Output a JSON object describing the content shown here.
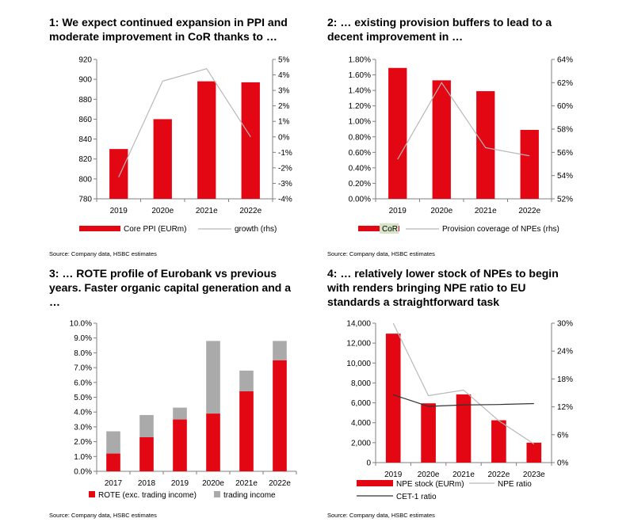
{
  "colors": {
    "bar": "#e30613",
    "gray": "#aaaaaa",
    "line_light": "#b8b8b8",
    "line_dark": "#333333",
    "axis": "#7f7f7f"
  },
  "panels": [
    {
      "title_line1": "1: We expect continued expansion in PPI and",
      "title_line2": "moderate improvement in CoR thanks to …",
      "source": "Source: Company data, HSBC estimates"
    },
    {
      "title_line1": "2: … existing provision buffers to lead to a",
      "title_line2": "decent improvement in …",
      "source": "Source: Company data, HSBC estimates"
    },
    {
      "title_line1": "3: … ROTE profile of Eurobank vs previous",
      "title_line2": "years. Faster organic capital generation and a",
      "title_line3": "…",
      "source": "Source: Company data, HSBC estimates"
    },
    {
      "title_line1": "4: … relatively lower stock of NPEs to begin",
      "title_line2": "with renders bringing NPE ratio to EU",
      "title_line3": "standards a straightforward task",
      "source": "Source: Company data, HSBC estimates"
    }
  ],
  "chart_data": [
    {
      "type": "bar",
      "categories": [
        "2019",
        "2020e",
        "2021e",
        "2022e"
      ],
      "series": [
        {
          "name": "Core PPI (EURm)",
          "kind": "bar",
          "axis": "left",
          "values": [
            830,
            860,
            898,
            897
          ]
        },
        {
          "name": "growth (rhs)",
          "kind": "line",
          "axis": "right",
          "values": [
            -2.6,
            3.6,
            4.4,
            0.0
          ]
        }
      ],
      "ylim": [
        780,
        920
      ],
      "yticks": [
        "780",
        "800",
        "820",
        "840",
        "860",
        "880",
        "900",
        "920"
      ],
      "y2lim": [
        -4,
        5
      ],
      "y2ticks": [
        "-4%",
        "-3%",
        "-2%",
        "-1%",
        "0%",
        "1%",
        "2%",
        "3%",
        "4%",
        "5%"
      ]
    },
    {
      "type": "bar",
      "categories": [
        "2019",
        "2020e",
        "2021e",
        "2022e"
      ],
      "series": [
        {
          "name": "CoR",
          "kind": "bar",
          "axis": "left",
          "values": [
            1.69,
            1.53,
            1.39,
            0.89
          ]
        },
        {
          "name": "Provision coverage of NPEs (rhs)",
          "kind": "line",
          "axis": "right",
          "values": [
            55.4,
            62.0,
            56.4,
            55.7
          ]
        }
      ],
      "ylim": [
        0,
        1.8
      ],
      "yticks": [
        "0.00%",
        "0.20%",
        "0.40%",
        "0.60%",
        "0.80%",
        "1.00%",
        "1.20%",
        "1.40%",
        "1.60%",
        "1.80%"
      ],
      "y2lim": [
        52,
        64
      ],
      "y2ticks": [
        "52%",
        "54%",
        "56%",
        "58%",
        "60%",
        "62%",
        "64%"
      ]
    },
    {
      "type": "bar",
      "stacked": true,
      "categories": [
        "2017",
        "2018",
        "2019",
        "2020e",
        "2021e",
        "2022e"
      ],
      "series": [
        {
          "name": "ROTE (exc. trading income)",
          "values": [
            1.2,
            2.3,
            3.5,
            3.9,
            5.4,
            7.5
          ]
        },
        {
          "name": "trading income",
          "values": [
            1.5,
            1.5,
            0.8,
            4.9,
            1.4,
            1.3
          ]
        }
      ],
      "ylim": [
        0,
        10
      ],
      "yticks": [
        "0.0%",
        "1.0%",
        "2.0%",
        "3.0%",
        "4.0%",
        "5.0%",
        "6.0%",
        "7.0%",
        "8.0%",
        "9.0%",
        "10.0%"
      ]
    },
    {
      "type": "bar",
      "categories": [
        "2019",
        "2020e",
        "2021e",
        "2022e",
        "2023e"
      ],
      "series": [
        {
          "name": "NPE stock (EURm)",
          "kind": "bar",
          "axis": "left",
          "values": [
            12950,
            5950,
            6850,
            4250,
            2000
          ]
        },
        {
          "name": "NPE ratio",
          "kind": "line",
          "axis": "right",
          "values": [
            30.0,
            14.4,
            15.6,
            9.0,
            4.0
          ]
        },
        {
          "name": "CET-1 ratio",
          "kind": "line",
          "axis": "right",
          "values": [
            14.6,
            12.1,
            12.4,
            12.5,
            12.7
          ]
        }
      ],
      "ylim": [
        0,
        14000
      ],
      "yticks": [
        "0",
        "2,000",
        "4,000",
        "6,000",
        "8,000",
        "10,000",
        "12,000",
        "14,000"
      ],
      "y2lim": [
        0,
        30
      ],
      "y2ticks": [
        "0%",
        "6%",
        "12%",
        "18%",
        "24%",
        "30%"
      ]
    }
  ]
}
